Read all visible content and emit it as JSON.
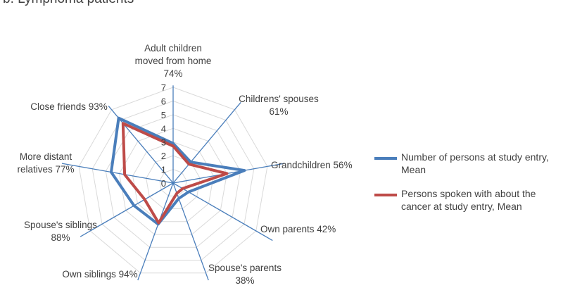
{
  "title": "b. Lymphoma patients",
  "chart_data": {
    "type": "radar",
    "title": "b. Lymphoma patients",
    "rmin": 0,
    "rmax": 7,
    "ticks": [
      "0",
      "1",
      "2",
      "3",
      "4",
      "5",
      "6",
      "7"
    ],
    "categories": [
      "Adult children moved from home 74%",
      "Childrens' spouses 61%",
      "Grandchildren 56%",
      "Own parents 42%",
      "Spouse's parents 38%",
      "Own siblings 94%",
      "Spouse's siblings 88%",
      "More distant relatives 77%",
      "Close friends 93%"
    ],
    "category_lines": [
      [
        "Adult children",
        "moved from home",
        "74%"
      ],
      [
        "Childrens' spouses",
        "61%"
      ],
      [
        "Grandchildren 56%"
      ],
      [
        "Own parents 42%"
      ],
      [
        "Spouse's parents",
        "38%"
      ],
      [
        "Own siblings 94%"
      ],
      [
        "Spouse's siblings",
        "88%"
      ],
      [
        "More distant",
        "relatives 77%"
      ],
      [
        "Close friends 93%"
      ]
    ],
    "series": [
      {
        "name": "Number of persons at study entry, Mean",
        "name_lines": [
          "Number of persons at study entry,",
          "Mean"
        ],
        "color": "#4a7ebb",
        "values": [
          2.9,
          2.0,
          5.3,
          1.3,
          1.2,
          3.2,
          3.3,
          4.6,
          6.2
        ]
      },
      {
        "name": "Persons spoken with about the cancer at study entry, Mean",
        "name_lines": [
          "Persons spoken with about the",
          "cancer at study entry, Mean"
        ],
        "color": "#be4b48",
        "values": [
          2.7,
          1.8,
          4.0,
          0.8,
          0.8,
          3.1,
          2.4,
          3.6,
          5.7
        ]
      }
    ]
  }
}
